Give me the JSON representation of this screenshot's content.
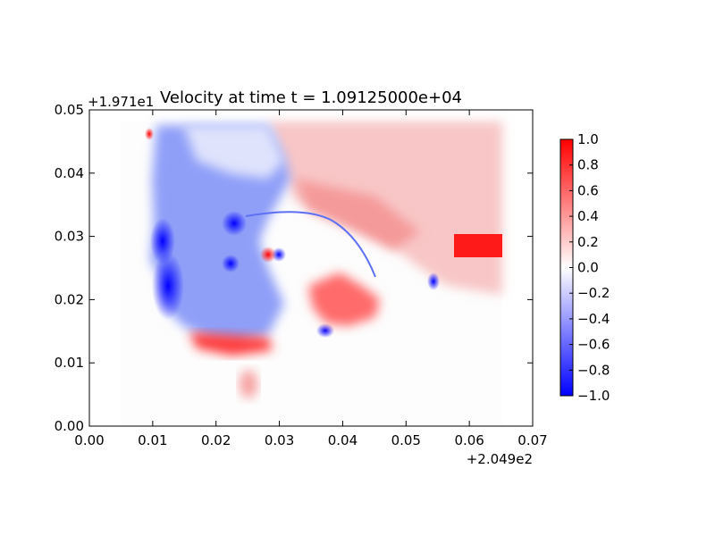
{
  "chart_data": {
    "type": "heatmap",
    "title": "Velocity at time t = 1.09125000e+04",
    "xlabel": "",
    "ylabel": "",
    "x_offset_label": "+2.049e2",
    "y_offset_label": "+1.971e1",
    "xlim": [
      0.0,
      0.07
    ],
    "ylim": [
      0.0,
      0.05
    ],
    "x_ticks": [
      "0.00",
      "0.01",
      "0.02",
      "0.03",
      "0.04",
      "0.05",
      "0.06",
      "0.07"
    ],
    "y_ticks": [
      "0.00",
      "0.01",
      "0.02",
      "0.03",
      "0.04",
      "0.05"
    ],
    "colorbar": {
      "colormap": "bwr",
      "range": [
        -1.0,
        1.0
      ],
      "ticks": [
        "1.0",
        "0.8",
        "0.6",
        "0.4",
        "0.2",
        "0.0",
        "−0.2",
        "−0.4",
        "−0.6",
        "−0.8",
        "−1.0"
      ]
    },
    "data_extent": {
      "x": [
        0.005,
        0.065
      ],
      "y": [
        0.0,
        0.048
      ]
    },
    "field_description": [
      {
        "x": [
          0.009,
          0.03
        ],
        "y": [
          0.015,
          0.045
        ],
        "value": -0.5
      },
      {
        "x": [
          0.03,
          0.065
        ],
        "y": [
          0.03,
          0.048
        ],
        "value": 0.2
      },
      {
        "x": [
          0.035,
          0.05
        ],
        "y": [
          0.014,
          0.025
        ],
        "value": 0.6
      },
      {
        "x": [
          0.058,
          0.065
        ],
        "y": [
          0.026,
          0.03
        ],
        "value": 1.0
      }
    ],
    "grid": false,
    "legend": "colorbar-right"
  }
}
